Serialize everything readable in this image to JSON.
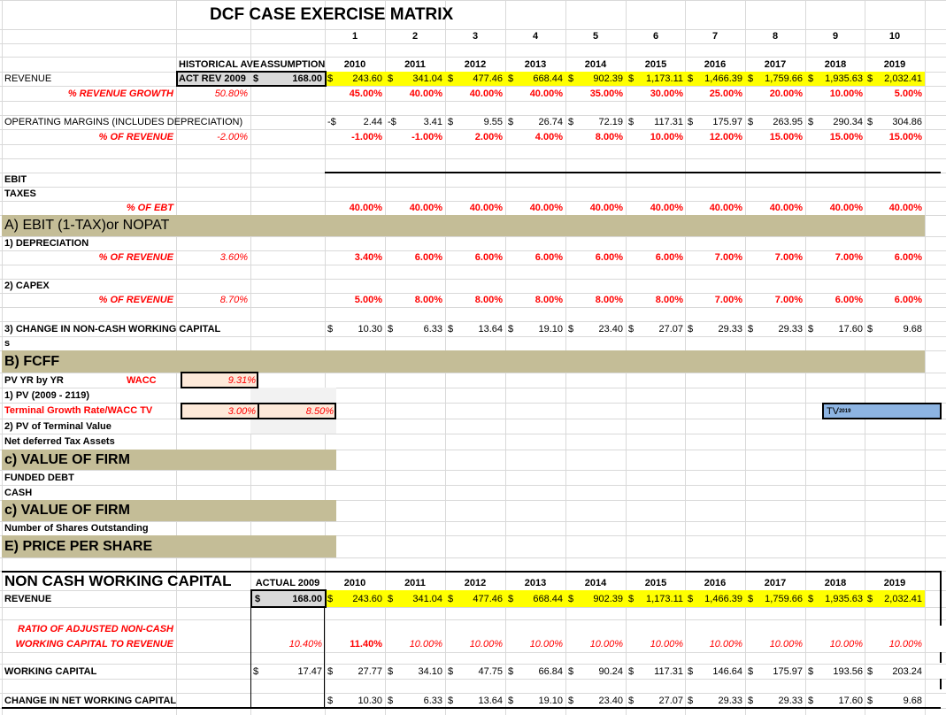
{
  "sheet": {
    "title": "DCF CASE EXERCISE MATRIX",
    "period_numbers": [
      "1",
      "2",
      "3",
      "4",
      "5",
      "6",
      "7",
      "8",
      "9",
      "10"
    ],
    "years": [
      "2010",
      "2011",
      "2012",
      "2013",
      "2014",
      "2015",
      "2016",
      "2017",
      "2018",
      "2019"
    ],
    "headers": {
      "historical_ave": "HISTORICAL AVE",
      "assumption": "ASSUMPTION"
    },
    "currency_symbol": "$",
    "colors": {
      "band": "#c4bd97",
      "highlight": "#ffff00",
      "input_fill": "#fde9d9",
      "tv_fill": "#8db4e2",
      "red_text": "#ff0000"
    }
  },
  "revenue": {
    "label": "REVENUE",
    "act_rev_label": "ACT REV 2009",
    "act_rev_value": "168.00",
    "values": [
      "243.60",
      "341.04",
      "477.46",
      "668.44",
      "902.39",
      "1,173.11",
      "1,466.39",
      "1,759.66",
      "1,935.63",
      "2,032.41"
    ]
  },
  "revenue_growth": {
    "label": "% REVENUE  GROWTH",
    "historical": "50.80%",
    "values": [
      "45.00%",
      "40.00%",
      "40.00%",
      "40.00%",
      "35.00%",
      "30.00%",
      "25.00%",
      "20.00%",
      "10.00%",
      "5.00%"
    ]
  },
  "operating_margins": {
    "label": "OPERATING MARGINS (INCLUDES DEPRECIATION)",
    "signs": [
      "-$",
      "-$",
      "$",
      "$",
      "$",
      "$",
      "$",
      "$",
      "$",
      "$"
    ],
    "values": [
      "2.44",
      "3.41",
      "9.55",
      "26.74",
      "72.19",
      "117.31",
      "175.97",
      "263.95",
      "290.34",
      "304.86"
    ],
    "pct_label": "% OF REVENUE",
    "pct_historical": "-2.00%",
    "pct_values": [
      "-1.00%",
      "-1.00%",
      "2.00%",
      "4.00%",
      "8.00%",
      "10.00%",
      "12.00%",
      "15.00%",
      "15.00%",
      "15.00%"
    ]
  },
  "ebit": {
    "label": "EBIT"
  },
  "taxes": {
    "label": "TAXES",
    "pct_label": "% OF EBT",
    "pct_values": [
      "40.00%",
      "40.00%",
      "40.00%",
      "40.00%",
      "40.00%",
      "40.00%",
      "40.00%",
      "40.00%",
      "40.00%",
      "40.00%"
    ]
  },
  "nopat_band": {
    "label": "A) EBIT (1-TAX)or  NOPAT"
  },
  "depreciation": {
    "label": "1) DEPRECIATION",
    "pct_label": "% OF REVENUE",
    "pct_historical": "3.60%",
    "pct_values": [
      "3.40%",
      "6.00%",
      "6.00%",
      "6.00%",
      "6.00%",
      "6.00%",
      "7.00%",
      "7.00%",
      "7.00%",
      "6.00%"
    ]
  },
  "capex": {
    "label": "2) CAPEX",
    "pct_label": "% OF REVENUE",
    "pct_historical": "8.70%",
    "pct_values": [
      "5.00%",
      "8.00%",
      "8.00%",
      "8.00%",
      "8.00%",
      "8.00%",
      "7.00%",
      "7.00%",
      "6.00%",
      "6.00%"
    ]
  },
  "change_ncwc": {
    "label": "3) CHANGE IN NON-CASH WORKING CAPITAL",
    "values": [
      "10.30",
      "6.33",
      "13.64",
      "19.10",
      "23.40",
      "27.07",
      "29.33",
      "29.33",
      "17.60",
      "9.68"
    ]
  },
  "stray_text": "s",
  "fcff_band": {
    "label": "B) FCFF"
  },
  "valuation": {
    "pv_yr_label": "PV YR by  YR",
    "wacc_label": "WACC",
    "wacc_value": "9.31%",
    "pv_label": "1) PV (2009 - 2119)",
    "terminal_label": "Terminal Growth Rate/WACC TV",
    "terminal_growth": "3.00%",
    "wacc_tv": "8.50%",
    "pv_tv_label": "2) PV of Terminal Value",
    "ndta_label": "Net deferred Tax Assets",
    "tv_cell_label": "TV",
    "tv_cell_sub": "2019"
  },
  "value_band_1": {
    "label": "c) VALUE OF FIRM"
  },
  "funded_debt": {
    "label": "FUNDED DEBT"
  },
  "cash": {
    "label": "CASH"
  },
  "value_band_2": {
    "label": "c) VALUE OF FIRM"
  },
  "shares": {
    "label": "Number of Shares Outstanding"
  },
  "price_band": {
    "label": "E) PRICE PER SHARE"
  },
  "ncwc": {
    "title": "NON CASH WORKING CAPITAL",
    "actual_label": "ACTUAL 2009",
    "revenue_label": "REVENUE",
    "revenue_actual": "168.00",
    "revenue_values": [
      "243.60",
      "341.04",
      "477.46",
      "668.44",
      "902.39",
      "1,173.11",
      "1,466.39",
      "1,759.66",
      "1,935.63",
      "2,032.41"
    ],
    "ratio_label_1": "RATIO OF ADJUSTED NON-CASH",
    "ratio_label_2": "WORKING CAPITAL TO REVENUE",
    "ratio_actual": "10.40%",
    "ratio_values": [
      "11.40%",
      "10.00%",
      "10.00%",
      "10.00%",
      "10.00%",
      "10.00%",
      "10.00%",
      "10.00%",
      "10.00%",
      "10.00%"
    ],
    "wc_label": "WORKING CAPITAL",
    "wc_actual": "17.47",
    "wc_values": [
      "27.77",
      "34.10",
      "47.75",
      "66.84",
      "90.24",
      "117.31",
      "146.64",
      "175.97",
      "193.56",
      "203.24"
    ],
    "change_label": "CHANGE IN NET WORKING CAPITAL",
    "change_values": [
      "10.30",
      "6.33",
      "13.64",
      "19.10",
      "23.40",
      "27.07",
      "29.33",
      "29.33",
      "17.60",
      "9.68"
    ]
  }
}
